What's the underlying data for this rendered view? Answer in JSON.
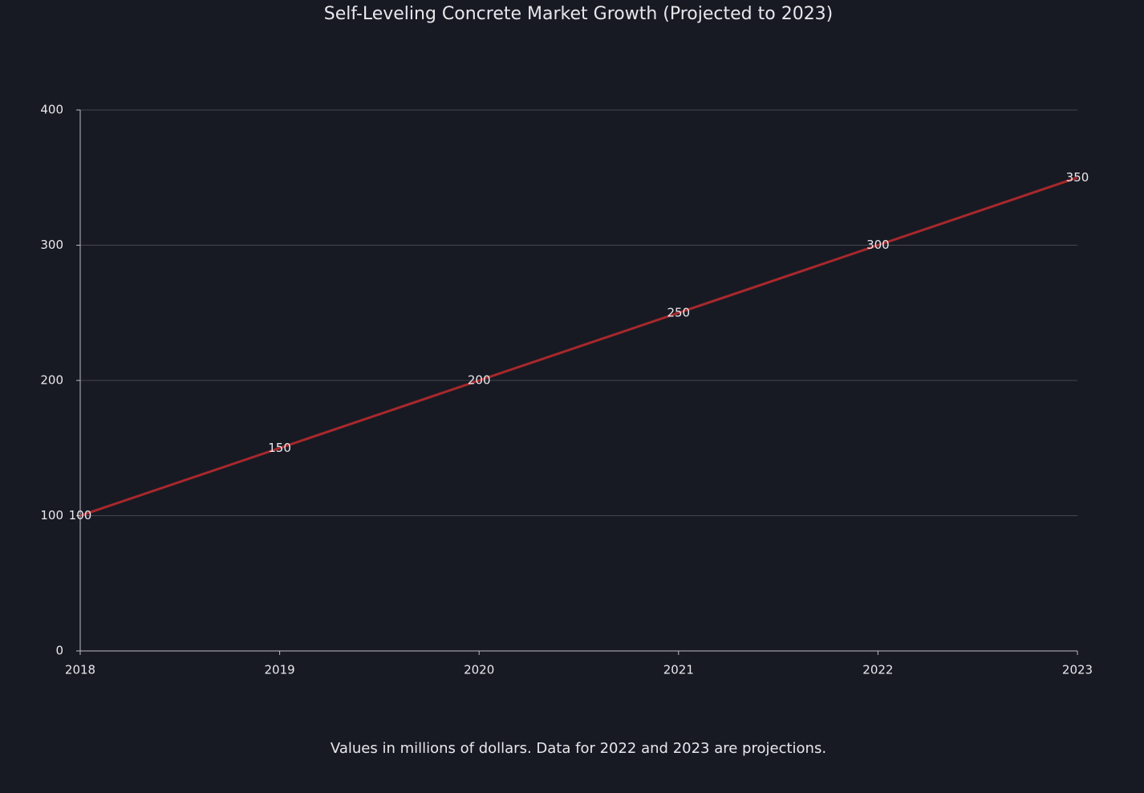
{
  "chart_data": {
    "type": "line",
    "title": "Self-Leveling Concrete Market Growth (Projected to 2023)",
    "note": "Values in millions of dollars. Data for 2022 and 2023 are projections.",
    "x": [
      2018,
      2019,
      2020,
      2021,
      2022,
      2023
    ],
    "values": [
      100,
      150,
      200,
      250,
      300,
      350
    ],
    "color": "#a8282c",
    "xlim": [
      2018,
      2023
    ],
    "xticks": [
      2018,
      2019,
      2020,
      2021,
      2022,
      2023
    ],
    "ylim": [
      0,
      400
    ],
    "yticks": [
      0,
      100,
      200,
      300,
      400
    ],
    "grid": true
  }
}
